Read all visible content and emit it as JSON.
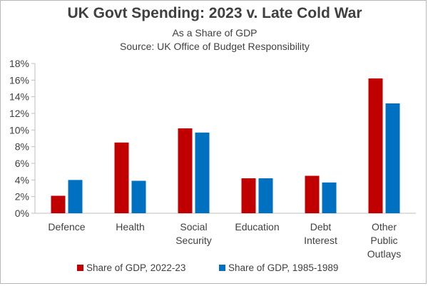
{
  "title": "UK Govt Spending:  2023 v. Late Cold War",
  "subtitle_1": "As a Share of GDP",
  "subtitle_2": "Source:  UK Office of Budget Responsibility",
  "colors": {
    "series_2023": "#c00000",
    "series_1985": "#0070c0",
    "axis": "#bfbfbf",
    "text": "#404040"
  },
  "chart_data": {
    "type": "bar",
    "title": "UK Govt Spending:  2023 v. Late Cold War",
    "subtitle": "As a Share of GDP",
    "categories": [
      [
        "Defence"
      ],
      [
        "Health"
      ],
      [
        "Social",
        "Security"
      ],
      [
        "Education"
      ],
      [
        "Debt",
        "Interest"
      ],
      [
        "Other",
        "Public",
        "Outlays"
      ]
    ],
    "series": [
      {
        "name": "Share of GDP, 2022-23",
        "values": [
          2.1,
          8.5,
          10.2,
          4.2,
          4.5,
          16.2
        ]
      },
      {
        "name": "Share of GDP, 1985-1989",
        "values": [
          4.0,
          3.9,
          9.7,
          4.2,
          3.7,
          13.2
        ]
      }
    ],
    "ylim": [
      0,
      18
    ],
    "yticks": [
      0,
      2,
      4,
      6,
      8,
      10,
      12,
      14,
      16,
      18
    ],
    "ytick_labels": [
      "0%",
      "2%",
      "4%",
      "6%",
      "8%",
      "10%",
      "12%",
      "14%",
      "16%",
      "18%"
    ],
    "grid": false,
    "legend_position": "bottom"
  }
}
